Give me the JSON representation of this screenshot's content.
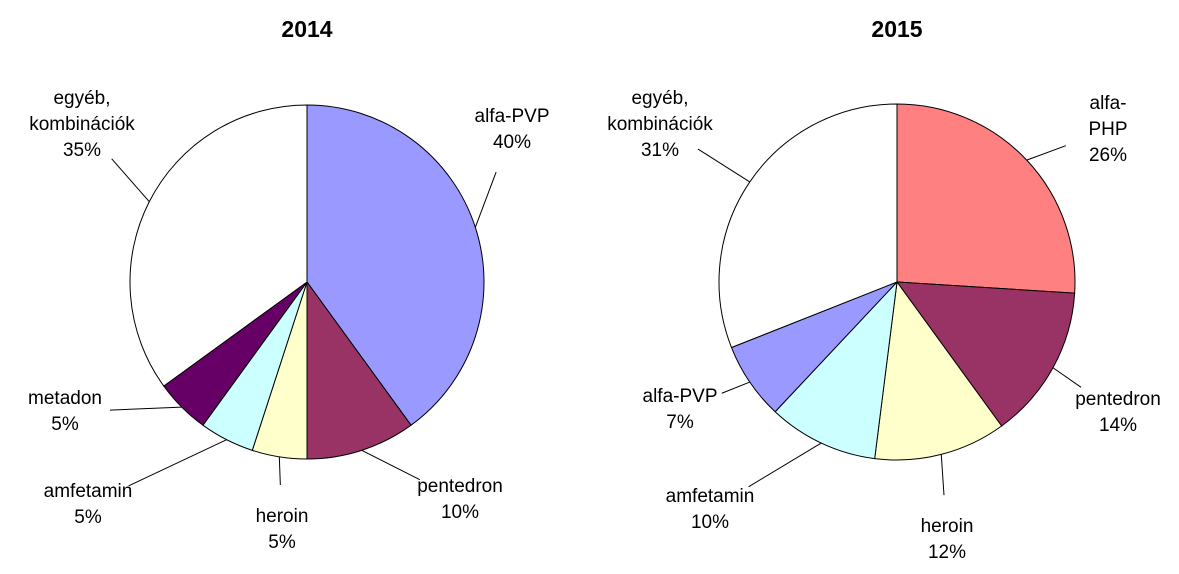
{
  "chart_data": [
    {
      "type": "pie",
      "title": "2014",
      "categories": [
        "alfa-PVP",
        "pentedron",
        "heroin",
        "amfetamin",
        "metadon",
        "egyéb, kombinációk"
      ],
      "values": [
        40,
        10,
        5,
        5,
        5,
        35
      ],
      "value_labels": [
        "40%",
        "10%",
        "5%",
        "5%",
        "5%",
        "35%"
      ],
      "colors": [
        "#9999ff",
        "#993366",
        "#ffffcc",
        "#ccffff",
        "#660066",
        "#ffffff"
      ]
    },
    {
      "type": "pie",
      "title": "2015",
      "categories": [
        "alfa-PHP",
        "pentedron",
        "heroin",
        "amfetamin",
        "alfa-PVP",
        "egyéb, kombinációk"
      ],
      "values": [
        26,
        14,
        12,
        10,
        7,
        31
      ],
      "value_labels": [
        "26%",
        "14%",
        "12%",
        "10%",
        "7%",
        "31%"
      ],
      "colors": [
        "#ff8080",
        "#993366",
        "#ffffcc",
        "#ccffff",
        "#9999ff",
        "#ffffff"
      ]
    }
  ]
}
